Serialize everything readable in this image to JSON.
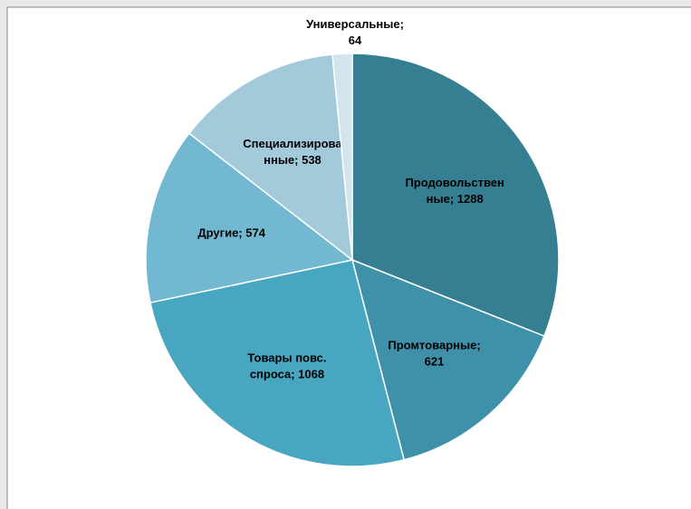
{
  "chart_data": {
    "type": "pie",
    "categories": [
      "Продовольственные",
      "Промтоварные",
      "Товары повс. спроса",
      "Другие",
      "Специализированные",
      "Универсальные"
    ],
    "values": [
      1288,
      621,
      1068,
      574,
      538,
      64
    ],
    "value_labels": [
      "Продовольственные; 1288",
      "Промтоварные; 621",
      "Товары повс. спроса; 1068",
      "Другие; 574",
      "Специализированные; 538",
      "Универсальные; 64"
    ],
    "colors": [
      "#367e91",
      "#3f91a9",
      "#48a6c1",
      "#72b8d0",
      "#a3cadb",
      "#d2e5ee"
    ]
  }
}
